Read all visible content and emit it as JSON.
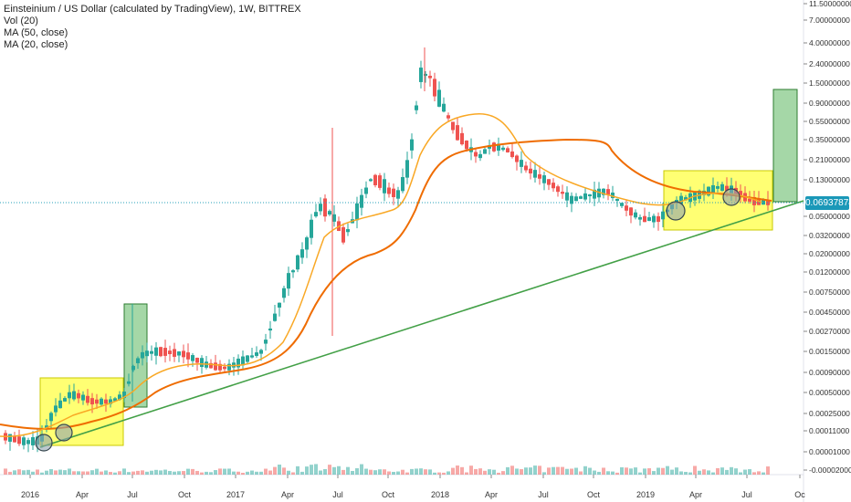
{
  "legend": {
    "title": "Einsteinium / US Dollar (calculated by TradingView), 1W, BITTREX",
    "vol": "Vol (20)",
    "ma50": "MA (50, close)",
    "ma20": "MA (20, close)"
  },
  "last_price": "0.06937874",
  "colors": {
    "up": "#26a69a",
    "down": "#ef5350",
    "ma50": "#ef6c00",
    "ma20": "#f9a825",
    "trendline": "#43a047",
    "highlight": "#ffff00",
    "target": "#4caf50",
    "price_line": "#26a0b8"
  },
  "chart_data": {
    "type": "candlestick",
    "title": "Einsteinium / US Dollar (calculated by TradingView), 1W, BITTREX",
    "y_scale": "log",
    "y_ticks": [
      "11.50000000",
      "7.00000000",
      "4.00000000",
      "2.40000000",
      "1.50000000",
      "0.90000000",
      "0.55000000",
      "0.35000000",
      "0.21000000",
      "0.13000000",
      "0.05000000",
      "0.03200000",
      "0.02000000",
      "0.01200000",
      "0.00750000",
      "0.00450000",
      "0.00270000",
      "0.00150000",
      "0.00090000",
      "0.00050000",
      "0.00025000",
      "0.00011000",
      "0.00001000",
      "-0.00002000"
    ],
    "x_ticks": [
      "2016",
      "Apr",
      "Jul",
      "Oct",
      "2017",
      "Apr",
      "Jul",
      "Oct",
      "2018",
      "Apr",
      "Jul",
      "Oct",
      "2019",
      "Apr",
      "Jul",
      "Oc"
    ],
    "indicators": [
      "Vol (20)",
      "MA (50, close)",
      "MA (20, close)"
    ],
    "last_price": 0.06937874
  }
}
